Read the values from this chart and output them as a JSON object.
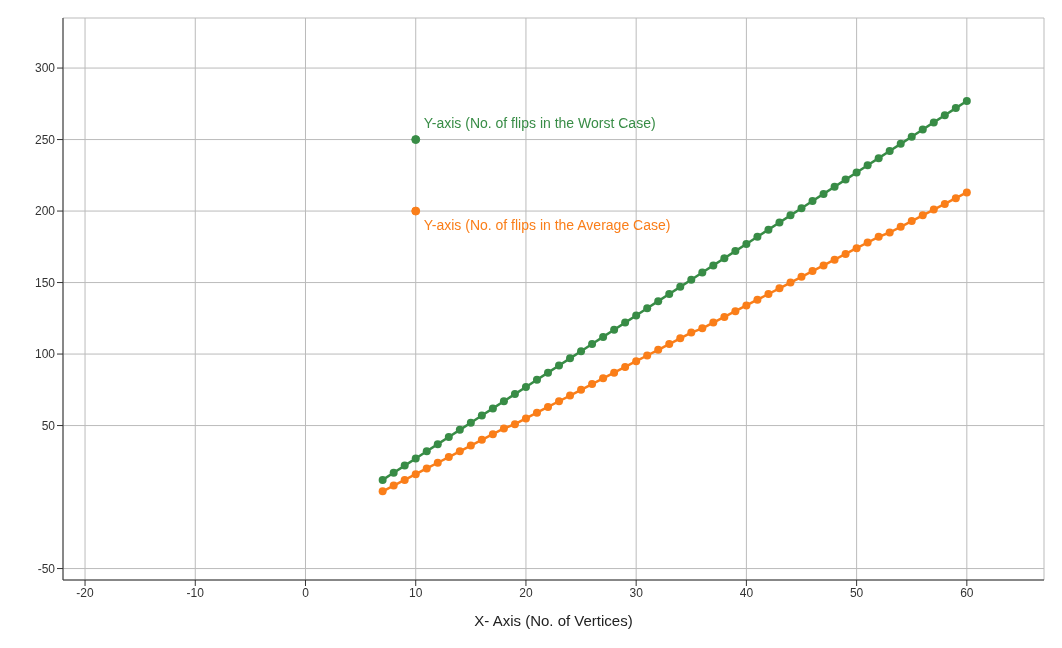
{
  "chart_data": {
    "type": "line",
    "xlabel": "X- Axis (No. of Vertices)",
    "x": [
      7,
      8,
      9,
      10,
      11,
      12,
      13,
      14,
      15,
      16,
      17,
      18,
      19,
      20,
      21,
      22,
      23,
      24,
      25,
      26,
      27,
      28,
      29,
      30,
      31,
      32,
      33,
      34,
      35,
      36,
      37,
      38,
      39,
      40,
      41,
      42,
      43,
      44,
      45,
      46,
      47,
      48,
      49,
      50,
      51,
      52,
      53,
      54,
      55,
      56,
      57,
      58,
      59,
      60
    ],
    "series": [
      {
        "color": "#388c46",
        "values": [
          12,
          17,
          22,
          27,
          32,
          37,
          42,
          47,
          52,
          57,
          62,
          67,
          72,
          77,
          82,
          87,
          92,
          97,
          102,
          107,
          112,
          117,
          122,
          127,
          132,
          137,
          142,
          147,
          152,
          157,
          162,
          167,
          172,
          177,
          182,
          187,
          192,
          197,
          202,
          207,
          212,
          217,
          222,
          227,
          232,
          237,
          242,
          247,
          252,
          257,
          262,
          267,
          272,
          277
        ]
      },
      {
        "color": "#fa7e19",
        "values": [
          4,
          8,
          12,
          16,
          20,
          24,
          28,
          32,
          36,
          40,
          44,
          48,
          51,
          55,
          59,
          63,
          67,
          71,
          75,
          79,
          83,
          87,
          91,
          95,
          99,
          103,
          107,
          111,
          115,
          118,
          122,
          126,
          130,
          134,
          138,
          142,
          146,
          150,
          154,
          158,
          162,
          166,
          170,
          174,
          178,
          182,
          185,
          189,
          193,
          197,
          201,
          205,
          209,
          213
        ]
      }
    ],
    "annotations": [
      {
        "text": "Y-axis (No. of flips in the Worst Case)",
        "x": 10,
        "y": 250
      },
      {
        "text": "Y-axis (No. of flips in the Average Case)",
        "x": 10,
        "y": 200
      }
    ],
    "marker": "circle",
    "line_style": "solid",
    "grid": true,
    "xlim": [
      -22,
      67
    ],
    "xticks": [
      -20,
      -10,
      0,
      10,
      20,
      30,
      40,
      50,
      60
    ],
    "ylim": [
      -58,
      335
    ],
    "yticks": [
      -50,
      50,
      100,
      150,
      200,
      250,
      300
    ]
  }
}
